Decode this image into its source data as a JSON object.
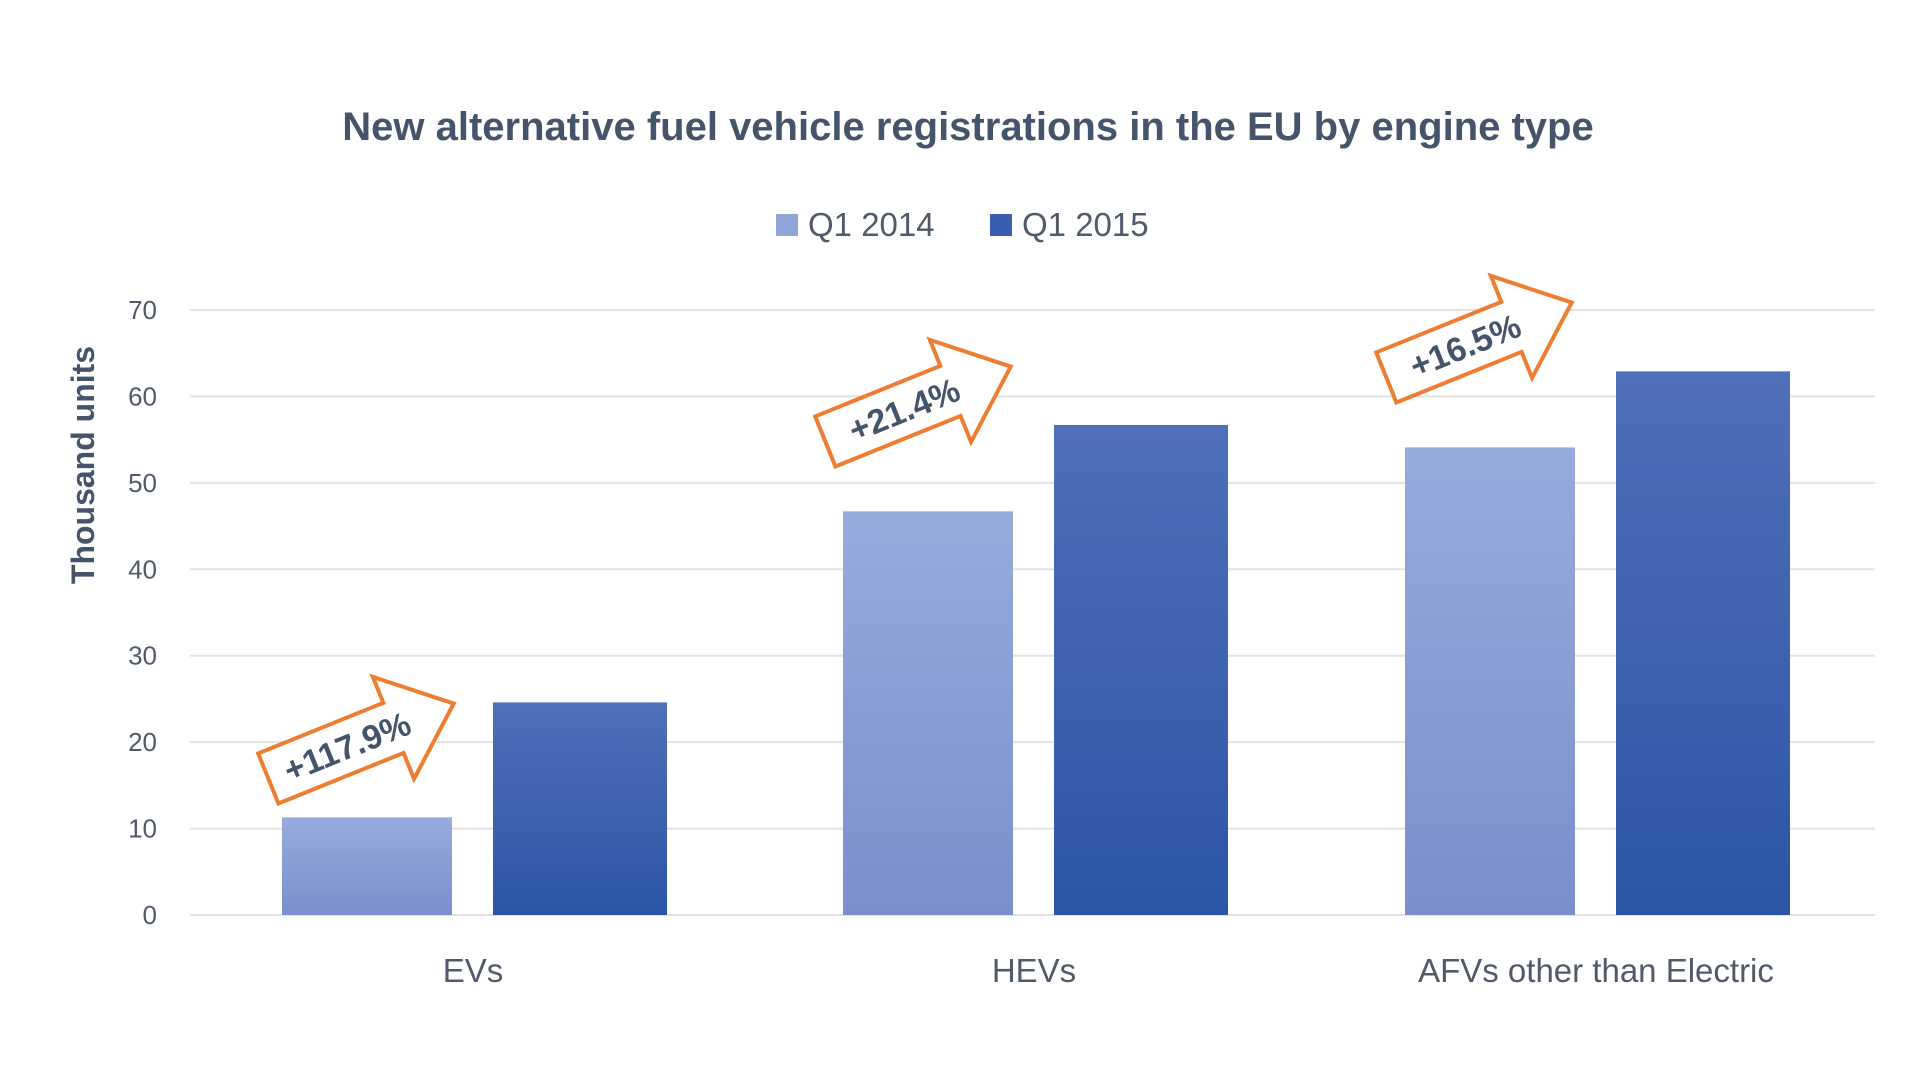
{
  "chart_data": {
    "type": "bar",
    "title": "New alternative fuel vehicle registrations in the EU by engine type",
    "xlabel": "",
    "ylabel": "Thousand units",
    "ylim": [
      0,
      70
    ],
    "yticks": [
      "0",
      "10",
      "20",
      "30",
      "40",
      "50",
      "60",
      "70"
    ],
    "grid": true,
    "legend_placement": "top-center",
    "categories": [
      "EVs",
      "HEVs",
      "AFVs other than Electric"
    ],
    "series": [
      {
        "name": "Q1 2014",
        "values": [
          11.3,
          46.7,
          54.1
        ],
        "color": "#8fa5d8"
      },
      {
        "name": "Q1 2015",
        "values": [
          24.6,
          56.7,
          62.9
        ],
        "color": "#3a5fb0"
      }
    ],
    "annotations": [
      "+117.9%",
      "+21.4%",
      "+16.5%"
    ],
    "annotation_color": "#ed7d31"
  }
}
